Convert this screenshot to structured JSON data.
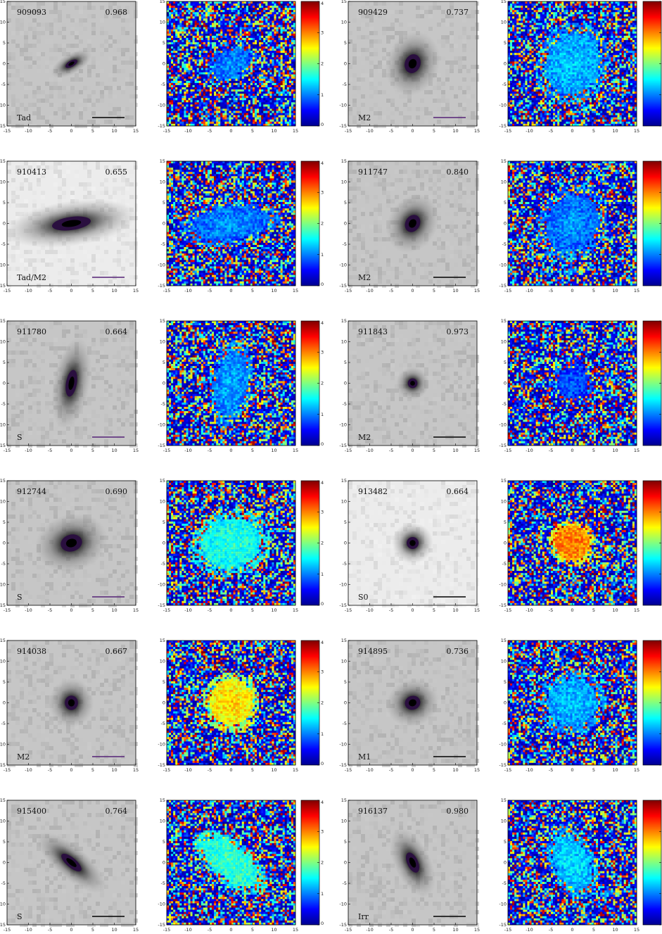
{
  "axis_ticks": [
    "-15",
    "-10",
    "-5",
    "0",
    "5",
    "10",
    "15"
  ],
  "colorbar_ticks": [
    "0",
    "1",
    "2",
    "3",
    "4"
  ],
  "colorbar_colors": [
    "#00008f",
    "#0000ff",
    "#0080ff",
    "#00ffff",
    "#80ff80",
    "#ffff00",
    "#ff8000",
    "#ff0000",
    "#800000"
  ],
  "panels": [
    {
      "id": "909093",
      "z": "0.968",
      "morph": "Tad",
      "bar_color": "#000000",
      "shape": {
        "rx": 2.2,
        "ry": 1.0,
        "rot": -30,
        "spread": 1.6,
        "color_level": 1.1
      }
    },
    {
      "id": "909429",
      "z": "0.737",
      "morph": "M2",
      "bar_color": "#552277",
      "shape": {
        "rx": 3.2,
        "ry": 2.6,
        "rot": -70,
        "spread": 1.9,
        "color_level": 1.3
      }
    },
    {
      "id": "910413",
      "z": "0.655",
      "morph": "Tad/M2",
      "bar_color": "#552277",
      "shape": {
        "rx": 6.5,
        "ry": 2.2,
        "rot": -8,
        "spread": 1.2,
        "color_level": 1.1
      }
    },
    {
      "id": "911747",
      "z": "0.840",
      "morph": "M2",
      "bar_color": "#000000",
      "shape": {
        "rx": 3.0,
        "ry": 2.4,
        "rot": -60,
        "spread": 1.9,
        "color_level": 1.1
      }
    },
    {
      "id": "911780",
      "z": "0.664",
      "morph": "S",
      "bar_color": "#552277",
      "shape": {
        "rx": 1.8,
        "ry": 4.5,
        "rot": 10,
        "spread": 1.4,
        "color_level": 1.2
      }
    },
    {
      "id": "911843",
      "z": "0.973",
      "morph": "M2",
      "bar_color": "#000000",
      "shape": {
        "rx": 1.6,
        "ry": 1.6,
        "rot": 0,
        "spread": 1.5,
        "color_level": 0.9
      }
    },
    {
      "id": "912744",
      "z": "0.690",
      "morph": "S",
      "bar_color": "#552277",
      "shape": {
        "rx": 3.6,
        "ry": 2.8,
        "rot": -15,
        "spread": 1.6,
        "color_level": 1.7
      }
    },
    {
      "id": "913482",
      "z": "0.664",
      "morph": "S0",
      "bar_color": "#000000",
      "shape": {
        "rx": 2.0,
        "ry": 2.0,
        "rot": 0,
        "spread": 1.4,
        "color_level": 3.1
      }
    },
    {
      "id": "914038",
      "z": "0.667",
      "morph": "M2",
      "bar_color": "#552277",
      "shape": {
        "rx": 2.2,
        "ry": 2.4,
        "rot": 0,
        "spread": 1.7,
        "color_level": 2.7
      }
    },
    {
      "id": "914895",
      "z": "0.736",
      "morph": "M1",
      "bar_color": "#000000",
      "shape": {
        "rx": 2.6,
        "ry": 2.3,
        "rot": -20,
        "spread": 1.8,
        "color_level": 1.3
      }
    },
    {
      "id": "915400",
      "z": "0.764",
      "morph": "S",
      "bar_color": "#000000",
      "shape": {
        "rx": 4.2,
        "ry": 1.6,
        "rot": 40,
        "spread": 1.5,
        "color_level": 1.8
      }
    },
    {
      "id": "916137",
      "z": "0.980",
      "morph": "Irr",
      "bar_color": "#000000",
      "shape": {
        "rx": 1.8,
        "ry": 3.6,
        "rot": -25,
        "spread": 1.5,
        "color_level": 1.4
      }
    }
  ]
}
